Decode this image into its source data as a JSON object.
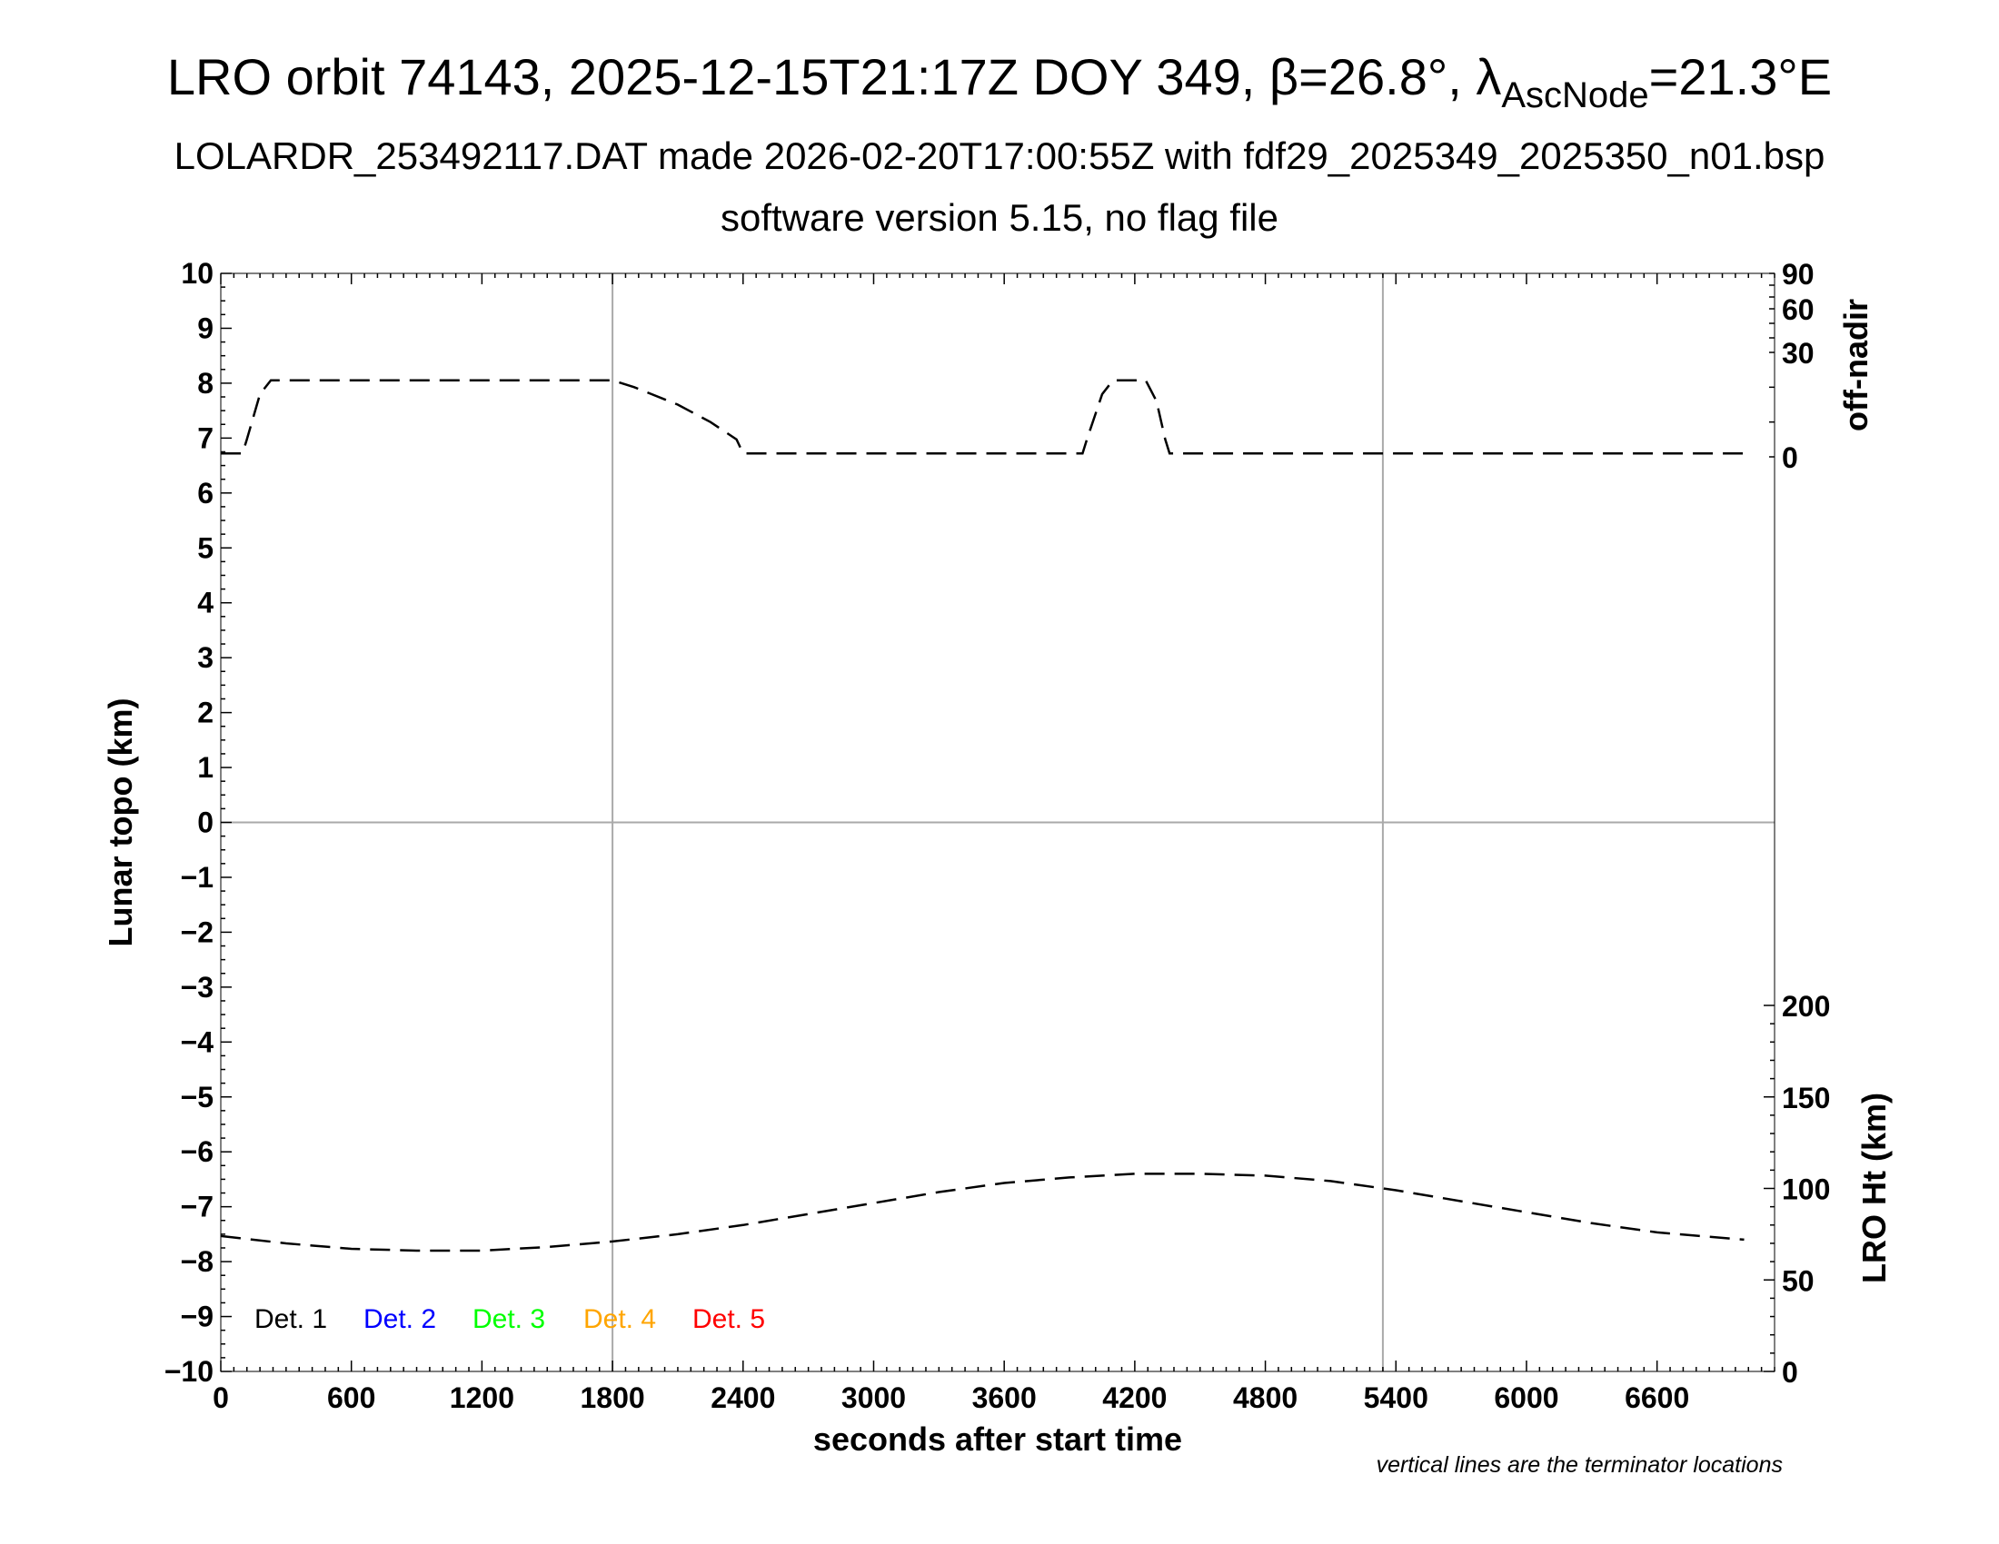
{
  "title": {
    "main_prefix": "LRO orbit 74143, 2025-12-15T21:17Z DOY 349, β=26.8°, λ",
    "main_sub": "AscNode",
    "main_suffix": "=21.3°E",
    "line2": "LOLARDR_253492117.DAT made 2026-02-20T17:00:55Z with fdf29_2025349_2025350_n01.bsp",
    "line3": "software version 5.15, no flag file"
  },
  "note": "vertical lines are the terminator locations",
  "chart_data": {
    "type": "line",
    "xlabel": "seconds after start time",
    "xlim": [
      0,
      7140
    ],
    "x_ticks": [
      0,
      600,
      1200,
      1800,
      2400,
      3000,
      3600,
      4200,
      4800,
      5400,
      6000,
      6600
    ],
    "ylabel": "Lunar topo (km)",
    "ylim": [
      -10,
      10
    ],
    "y_ticks": [
      10,
      9,
      8,
      7,
      6,
      5,
      4,
      3,
      2,
      1,
      0,
      -1,
      -2,
      -3,
      -4,
      -5,
      -6,
      -7,
      -8,
      -9,
      -10
    ],
    "y_tick_labels": [
      "10",
      "9",
      "8",
      "7",
      "6",
      "5",
      "4",
      "3",
      "2",
      "1",
      "0",
      "−1",
      "−2",
      "−3",
      "−4",
      "−5",
      "−6",
      "−7",
      "−8",
      "−9",
      "−10"
    ],
    "right_upper_axis": {
      "label": "off-nadir",
      "ticks": [
        0,
        30,
        60,
        90
      ],
      "tick_labels": [
        "0",
        "30",
        "60",
        "90"
      ]
    },
    "right_lower_axis": {
      "label": "LRO Ht (km)",
      "range": [
        0,
        200
      ],
      "ticks": [
        0,
        50,
        100,
        150,
        200
      ],
      "tick_labels": [
        "0",
        "50",
        "100",
        "150",
        "200"
      ]
    },
    "terminator_lines_x": [
      1800,
      5340
    ],
    "grid_zero_line": true,
    "legend": {
      "placement": "bottom-left",
      "entries": [
        {
          "label": "Det. 1",
          "color": "#000000"
        },
        {
          "label": "Det. 2",
          "color": "#0000ff"
        },
        {
          "label": "Det. 3",
          "color": "#00ff00"
        },
        {
          "label": "Det. 4",
          "color": "#ffa500"
        },
        {
          "label": "Det. 5",
          "color": "#ff0000"
        }
      ]
    },
    "series": [
      {
        "axis": "off-nadir (deg)",
        "style": "dashed",
        "points": [
          [
            0,
            1
          ],
          [
            100,
            1
          ],
          [
            120,
            5
          ],
          [
            180,
            18
          ],
          [
            230,
            22
          ],
          [
            1800,
            22
          ],
          [
            1900,
            20
          ],
          [
            2100,
            15
          ],
          [
            2250,
            10
          ],
          [
            2370,
            5
          ],
          [
            2400,
            1
          ],
          [
            3960,
            1
          ],
          [
            3980,
            5
          ],
          [
            4050,
            18
          ],
          [
            4100,
            22
          ],
          [
            4250,
            22
          ],
          [
            4300,
            16
          ],
          [
            4340,
            5
          ],
          [
            4360,
            1
          ],
          [
            7000,
            1
          ]
        ]
      },
      {
        "axis": "LRO Ht (km)",
        "style": "dashed",
        "points": [
          [
            0,
            74
          ],
          [
            300,
            70
          ],
          [
            600,
            67
          ],
          [
            900,
            66
          ],
          [
            1200,
            66
          ],
          [
            1500,
            68
          ],
          [
            1800,
            71
          ],
          [
            2100,
            75
          ],
          [
            2400,
            80
          ],
          [
            2700,
            86
          ],
          [
            3000,
            92
          ],
          [
            3300,
            98
          ],
          [
            3600,
            103
          ],
          [
            3900,
            106
          ],
          [
            4200,
            108
          ],
          [
            4500,
            108
          ],
          [
            4800,
            107
          ],
          [
            5100,
            104
          ],
          [
            5400,
            99
          ],
          [
            5700,
            93
          ],
          [
            6000,
            87
          ],
          [
            6300,
            81
          ],
          [
            6600,
            76
          ],
          [
            7000,
            72
          ]
        ]
      }
    ]
  }
}
